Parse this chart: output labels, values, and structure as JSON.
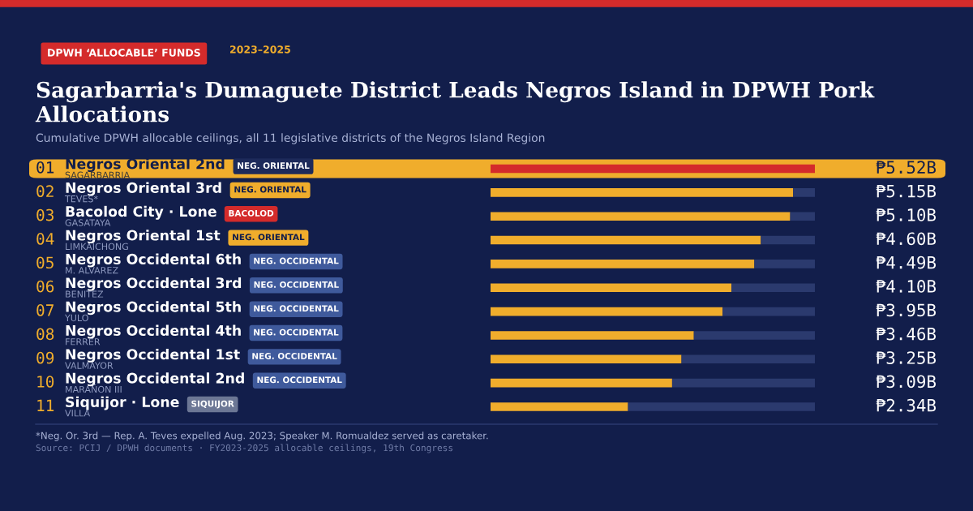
{
  "chart_data": {
    "type": "bar",
    "orientation": "horizontal",
    "title": "Sagarbarria's Dumaguete District Leads Negros Island in DPWH Pork Allocations",
    "subtitle": "Cumulative DPWH allocable ceilings, all 11 legislative districts of the Negros Island Region",
    "categories": [
      "Negros Oriental 2nd",
      "Negros Oriental 3rd",
      "Bacolod City · Lone",
      "Negros Oriental 1st",
      "Negros Occidental 6th",
      "Negros Occidental 3rd",
      "Negros Occidental 5th",
      "Negros Occidental 4th",
      "Negros Occidental 1st",
      "Negros Occidental 2nd",
      "Siquijor · Lone"
    ],
    "stacked": true,
    "series": [
      {
        "values": [
          5.52,
          5.15,
          5.1,
          4.6,
          4.49,
          4.1,
          3.95,
          3.46,
          3.25,
          3.09,
          2.34
        ],
        "value_labels": [
          "₱5.52B",
          "₱5.15B",
          "₱5.10B",
          "₱4.60B",
          "₱4.49B",
          "₱4.10B",
          "₱3.95B",
          "₱3.46B",
          "₱3.25B",
          "₱3.09B",
          "₱2.34B"
        ],
        "colors": [
          "#d42b2b",
          "#f0ad2c",
          "#f0ad2c",
          "#f0ad2c",
          "#f0ad2c",
          "#f0ad2c",
          "#f0ad2c",
          "#f0ad2c",
          "#f0ad2c",
          "#f0ad2c",
          "#f0ad2c"
        ]
      },
      {
        "color": "#2b3a6e",
        "values": [
          0,
          0.37,
          0.42,
          0.92,
          1.03,
          1.42,
          1.57,
          2.06,
          2.27,
          2.43,
          3.18
        ]
      }
    ],
    "annotations": [
      "DPWH ‘ALLOCABLE’ FUNDS",
      "2023–2025",
      "01",
      "SAGARBARRIA",
      "NEG. ORIENTAL",
      "02",
      "TEVES*",
      "NEG. ORIENTAL",
      "03",
      "GASATAYA",
      "BACOLOD",
      "04",
      "LIMKAICHONG",
      "NEG. ORIENTAL",
      "05",
      "M. ALVAREZ",
      "NEG. OCCIDENTAL",
      "06",
      "BENITEZ",
      "NEG. OCCIDENTAL",
      "07",
      "YULO",
      "NEG. OCCIDENTAL",
      "08",
      "FERRER",
      "NEG. OCCIDENTAL",
      "09",
      "VALMAYOR",
      "NEG. OCCIDENTAL",
      "10",
      "MARAÑON III",
      "NEG. OCCIDENTAL",
      "11",
      "VILLA",
      "SIQUIJOR",
      "*Neg. Or. 3rd — Rep. A. Teves expelled Aug. 2023; Speaker M. Romualdez served as caretaker.",
      "Source: PCIJ / DPWH documents · FY2023-2025 allocable ceilings, 19th Congress"
    ]
  }
}
